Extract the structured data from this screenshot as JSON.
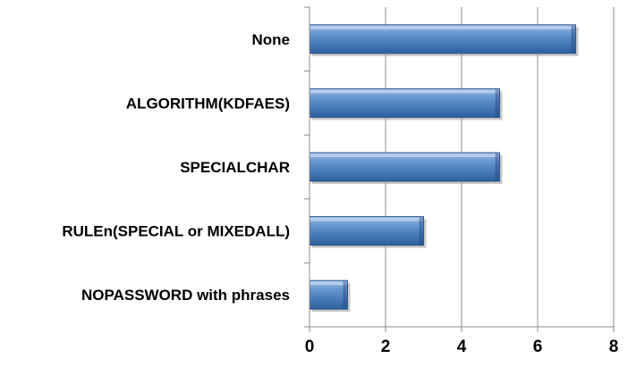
{
  "chart_data": {
    "type": "bar",
    "orientation": "horizontal",
    "categories": [
      "None",
      "ALGORITHM(KDFAES)",
      "SPECIALCHAR",
      "RULEn(SPECIAL or MIXEDALL)",
      "NOPASSWORD with phrases"
    ],
    "values": [
      7,
      5,
      5,
      3,
      1
    ],
    "xlim": [
      0,
      8
    ],
    "xticks": [
      "0",
      "2",
      "4",
      "6",
      "8"
    ],
    "grid": "vertical",
    "legend": "none",
    "bar_color": "#4a7ebb",
    "title": "",
    "xlabel": "",
    "ylabel": ""
  }
}
